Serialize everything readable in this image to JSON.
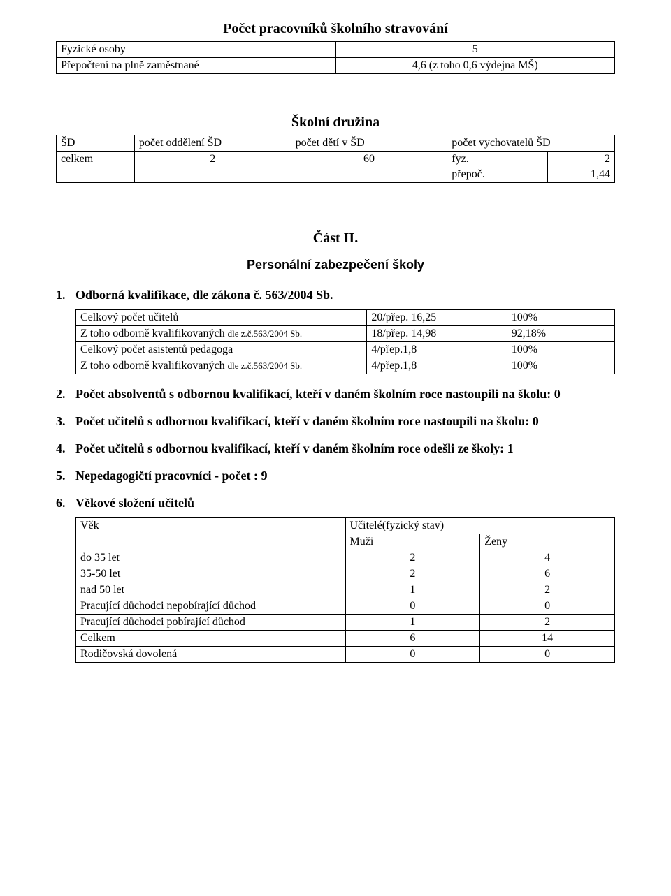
{
  "catering": {
    "title": "Počet pracovníků školního stravování",
    "rows": [
      {
        "label": "Fyzické osoby",
        "value": "5"
      },
      {
        "label": "Přepočtení na plně zaměstnané",
        "value": "4,6 (z toho 0,6 výdejna MŠ)"
      }
    ]
  },
  "druzina": {
    "title": "Školní družina",
    "headers": [
      "ŠD",
      "počet oddělení ŠD",
      "počet dětí v ŠD",
      "počet vychovatelů ŠD"
    ],
    "row": {
      "label": "celkem",
      "oddeleni": "2",
      "deti": "60",
      "vych1_label": "fyz.",
      "vych1_val": "2",
      "vych2_label": "přepoč.",
      "vych2_val": "1,44"
    }
  },
  "part2": {
    "title": "Část II.",
    "subtitle": "Personální zabezpečení školy"
  },
  "kvalif": {
    "heading": "Odborná kvalifikace, dle zákona č. 563/2004 Sb.",
    "rows": [
      {
        "label": "Celkový počet učitelů",
        "mid": "20/přep. 16,25",
        "pct": "100%"
      },
      {
        "label": "Z toho odborně kvalifikovaných dle z.č.563/2004 Sb.",
        "mid": "18/přep. 14,98",
        "pct": "92,18%"
      },
      {
        "label": "Celkový počet asistentů pedagoga",
        "mid": "4/přep.1,8",
        "pct": "100%"
      },
      {
        "label": "Z toho odborně kvalifikovaných dle z.č.563/2004 Sb.",
        "mid": "4/přep.1,8",
        "pct": "100%"
      }
    ]
  },
  "list": {
    "i2": "Počet absolventů s odbornou kvalifikací, kteří v daném školním roce  nastoupili na školu: 0",
    "i3": "Počet učitelů s odbornou  kvalifikací,  kteří v daném školním roce nastoupili na školu: 0",
    "i4": "Počet učitelů s odbornou kvalifikací, kteří v daném školním roce odešli ze školy: 1",
    "i5": " Nepedagogičtí pracovníci  - počet :  9",
    "i6": " Věkové složení učitelů"
  },
  "age": {
    "col0": "Věk",
    "col1_span": "Učitelé(fyzický stav)",
    "col1": "Muži",
    "col2": "Ženy",
    "rows": [
      {
        "label": "do 35 let",
        "m": "2",
        "z": "4"
      },
      {
        "label": "35-50 let",
        "m": "2",
        "z": "6"
      },
      {
        "label": "nad 50 let",
        "m": "1",
        "z": "2"
      },
      {
        "label": "Pracující důchodci nepobírající důchod",
        "m": "0",
        "z": "0"
      },
      {
        "label": "Pracující důchodci pobírající důchod",
        "m": "1",
        "z": "2"
      },
      {
        "label": "Celkem",
        "m": "6",
        "z": "14"
      },
      {
        "label": "Rodičovská dovolená",
        "m": "0",
        "z": "0"
      }
    ]
  }
}
